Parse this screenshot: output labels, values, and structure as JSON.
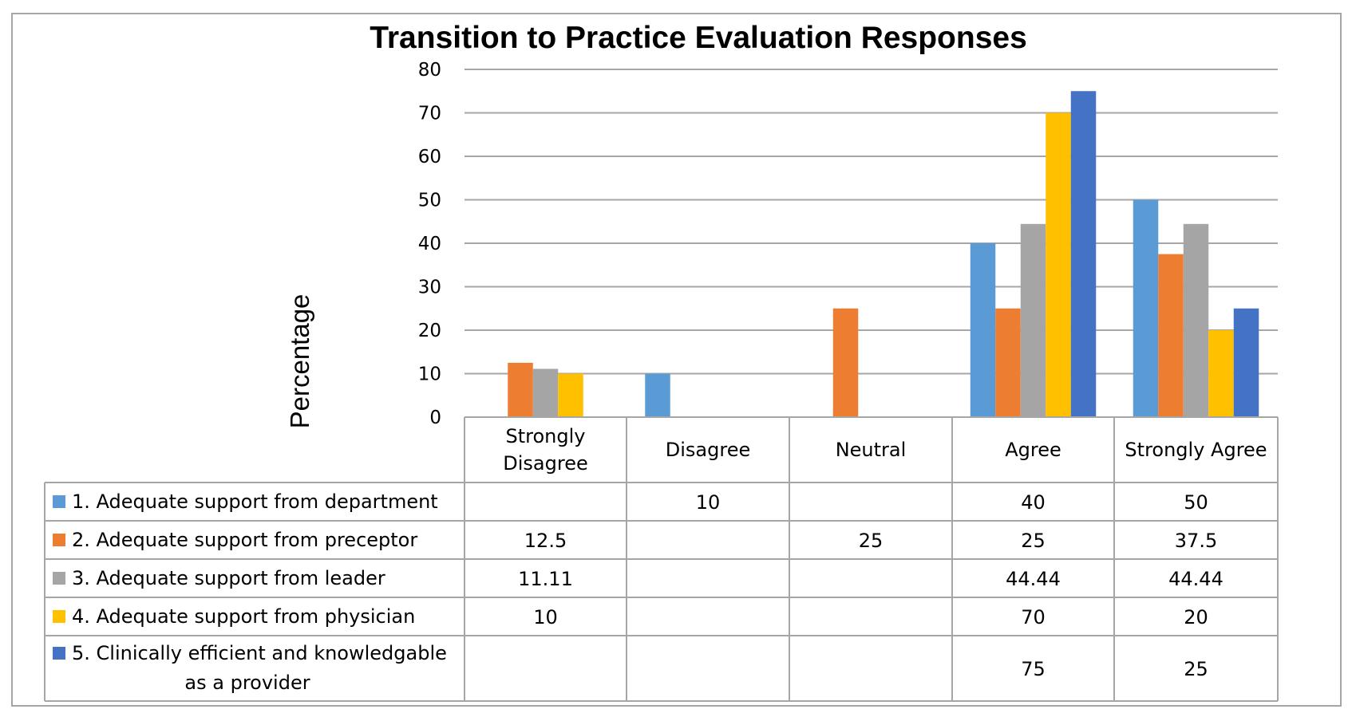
{
  "chart_data": {
    "type": "bar",
    "title": "Transition to Practice Evaluation Responses",
    "ylabel": "Percentage",
    "xlabel": "",
    "ylim": [
      0,
      80
    ],
    "yticks": [
      0,
      10,
      20,
      30,
      40,
      50,
      60,
      70,
      80
    ],
    "grid": true,
    "legend": "data-table",
    "categories": [
      [
        "Strongly",
        "Disagree"
      ],
      [
        "Disagree"
      ],
      [
        "Neutral"
      ],
      [
        "Agree"
      ],
      [
        "Strongly Agree"
      ]
    ],
    "series": [
      {
        "name": [
          "1. Adequate support from department"
        ],
        "color": "#5b9bd5",
        "values": [
          null,
          10,
          null,
          40,
          50
        ],
        "labels": [
          "",
          "10",
          "",
          "40",
          "50"
        ]
      },
      {
        "name": [
          "2. Adequate support from preceptor"
        ],
        "color": "#ed7d31",
        "values": [
          12.5,
          null,
          25,
          25,
          37.5
        ],
        "labels": [
          "12.5",
          "",
          "25",
          "25",
          "37.5"
        ]
      },
      {
        "name": [
          "3. Adequate support from leader"
        ],
        "color": "#a5a5a5",
        "values": [
          11.11,
          null,
          null,
          44.44,
          44.44
        ],
        "labels": [
          "11.11",
          "",
          "",
          "44.44",
          "44.44"
        ]
      },
      {
        "name": [
          "4. Adequate support from physician"
        ],
        "color": "#ffc000",
        "values": [
          10,
          null,
          null,
          70,
          20
        ],
        "labels": [
          "10",
          "",
          "",
          "70",
          "20"
        ]
      },
      {
        "name": [
          "5.  Clinically efficient and knowledgable",
          "as a provider"
        ],
        "color": "#4472c4",
        "values": [
          null,
          null,
          null,
          75,
          25
        ],
        "labels": [
          "",
          "",
          "",
          "75",
          "25"
        ]
      }
    ]
  }
}
